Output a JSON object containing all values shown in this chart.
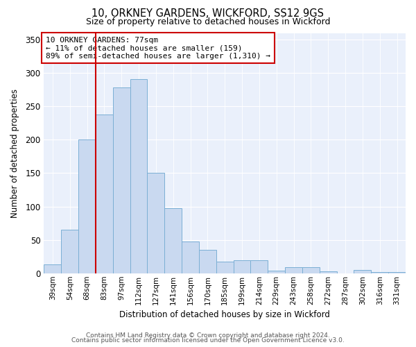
{
  "title": "10, ORKNEY GARDENS, WICKFORD, SS12 9GS",
  "subtitle": "Size of property relative to detached houses in Wickford",
  "xlabel": "Distribution of detached houses by size in Wickford",
  "ylabel": "Number of detached properties",
  "bar_labels": [
    "39sqm",
    "54sqm",
    "68sqm",
    "83sqm",
    "97sqm",
    "112sqm",
    "127sqm",
    "141sqm",
    "156sqm",
    "170sqm",
    "185sqm",
    "199sqm",
    "214sqm",
    "229sqm",
    "243sqm",
    "258sqm",
    "272sqm",
    "287sqm",
    "302sqm",
    "316sqm",
    "331sqm"
  ],
  "bar_values": [
    13,
    65,
    200,
    238,
    278,
    291,
    150,
    97,
    48,
    35,
    17,
    20,
    19,
    4,
    9,
    9,
    3,
    0,
    5,
    2,
    2
  ],
  "bar_color": "#c9d9f0",
  "bar_edge_color": "#7bafd4",
  "vline_x": 2.5,
  "vline_color": "#cc0000",
  "annotation_text": "10 ORKNEY GARDENS: 77sqm\n← 11% of detached houses are smaller (159)\n89% of semi-detached houses are larger (1,310) →",
  "annotation_box_color": "#ffffff",
  "annotation_box_edge": "#cc0000",
  "ylim": [
    0,
    360
  ],
  "yticks": [
    0,
    50,
    100,
    150,
    200,
    250,
    300,
    350
  ],
  "footer_line1": "Contains HM Land Registry data © Crown copyright and database right 2024.",
  "footer_line2": "Contains public sector information licensed under the Open Government Licence v3.0.",
  "background_color": "#ffffff",
  "plot_bg_color": "#eaf0fb"
}
